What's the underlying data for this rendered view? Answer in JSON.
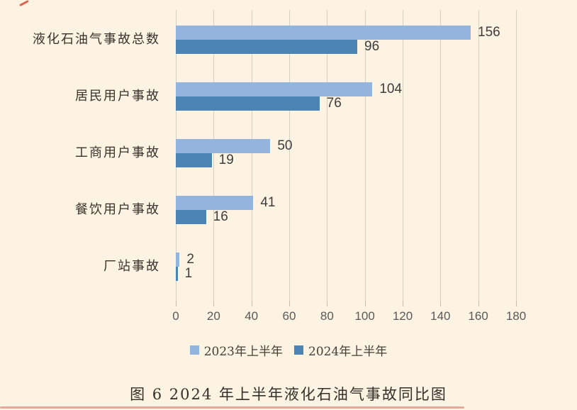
{
  "chart_data": {
    "type": "bar",
    "orientation": "horizontal",
    "categories": [
      "液化石油气事故总数",
      "居民用户事故",
      "工商用户事故",
      "餐饮用户事故",
      "厂站事故"
    ],
    "series": [
      {
        "name": "2023年上半年",
        "color": "#92b4dd",
        "values": [
          156,
          104,
          50,
          41,
          2
        ]
      },
      {
        "name": "2024年上半年",
        "color": "#4c84b6",
        "values": [
          96,
          76,
          19,
          16,
          1
        ]
      }
    ],
    "xlim": [
      0,
      180
    ],
    "xticks": [
      0,
      20,
      40,
      60,
      80,
      100,
      120,
      140,
      160,
      180
    ],
    "grid": true,
    "value_labels": true,
    "legend_position": "bottom"
  },
  "caption": "图 6 2024 年上半年液化石油气事故同比图",
  "colors": {
    "background": "#fdf3e2",
    "gridline": "#d6d0c3",
    "series_2023": "#92b4dd",
    "series_2024": "#4c84b6",
    "tick_label": "#595959",
    "value_label": "#3d3d3d",
    "accent_red": "#d44a3a"
  }
}
